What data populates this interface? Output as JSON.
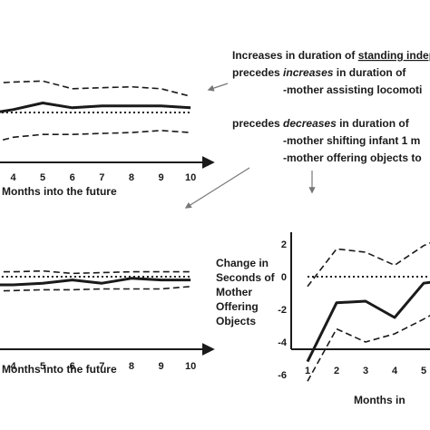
{
  "annotation": {
    "line1_prefix": "Increases in duration of ",
    "line1_underlined": "standing indep",
    "line2_prefix": "precedes ",
    "line2_emph": "increases",
    "line2_suffix": " in duration of",
    "line3": "-mother assisting locomoti",
    "line4_prefix": "precedes ",
    "line4_emph": "decreases",
    "line4_suffix": " in duration of",
    "line5": "-mother shifting infant 1 m",
    "line6": "-mother offering objects to"
  },
  "colors": {
    "line": "#1a1a1a",
    "axis": "#1a1a1a",
    "arrow": "#777777"
  },
  "chart_data": [
    {
      "type": "line",
      "panel": "top-left",
      "title": "",
      "xlabel": "Months into the future",
      "ylabel": "",
      "categories": [
        "4",
        "5",
        "6",
        "7",
        "8",
        "9",
        "10"
      ],
      "x": [
        3,
        4,
        5,
        6,
        7,
        8,
        9,
        10
      ],
      "series": [
        {
          "style": "solid",
          "values": [
            -0.1,
            0.15,
            0.5,
            0.25,
            0.35,
            0.35,
            0.35,
            0.25
          ]
        },
        {
          "style": "dashed",
          "values": [
            1.5,
            1.6,
            1.65,
            1.25,
            1.3,
            1.35,
            1.25,
            0.85
          ]
        },
        {
          "style": "dashed",
          "values": [
            -1.7,
            -1.3,
            -1.15,
            -1.15,
            -1.1,
            -1.05,
            -0.95,
            -1.05
          ]
        },
        {
          "style": "dotted",
          "values": [
            0,
            0,
            0,
            0,
            0,
            0,
            0,
            0
          ]
        }
      ],
      "ylim": [
        -2,
        2
      ],
      "grid": false
    },
    {
      "type": "line",
      "panel": "bottom-left",
      "title": "",
      "xlabel": "Months into the future",
      "ylabel": "",
      "categories": [
        "4",
        "5",
        "6",
        "7",
        "8",
        "9",
        "10"
      ],
      "x": [
        3,
        4,
        5,
        6,
        7,
        8,
        9,
        10
      ],
      "series": [
        {
          "style": "solid",
          "values": [
            -0.5,
            -0.5,
            -0.4,
            -0.2,
            -0.4,
            -0.1,
            -0.2,
            -0.2
          ]
        },
        {
          "style": "dashed",
          "values": [
            0.3,
            0.3,
            0.35,
            0.2,
            0.25,
            0.3,
            0.3,
            0.3
          ]
        },
        {
          "style": "dashed",
          "values": [
            -0.9,
            -0.85,
            -0.8,
            -0.8,
            -0.75,
            -0.75,
            -0.75,
            -0.6
          ]
        },
        {
          "style": "dotted",
          "values": [
            0,
            0,
            0,
            0,
            0,
            0,
            0,
            0
          ]
        }
      ],
      "ylim": [
        -6,
        2
      ],
      "grid": false
    },
    {
      "type": "line",
      "panel": "bottom-right",
      "title": "",
      "xlabel": "Months in",
      "ylabel": "Change in Seconds of Mother Offering Objects",
      "ylabel_lines": [
        "Change in",
        "Seconds of",
        "Mother",
        "Offering",
        "Objects"
      ],
      "categories": [
        "1",
        "2",
        "3",
        "4",
        "5"
      ],
      "yticks": [
        "2",
        "0",
        "-2",
        "-4",
        "-6"
      ],
      "x": [
        1,
        2,
        3,
        4,
        5,
        5.4
      ],
      "series": [
        {
          "style": "solid",
          "values": [
            -5.2,
            -1.6,
            -1.5,
            -2.5,
            -0.4,
            -0.3
          ]
        },
        {
          "style": "dashed",
          "values": [
            -0.6,
            1.7,
            1.5,
            0.7,
            1.9,
            2.2
          ]
        },
        {
          "style": "dashed",
          "values": [
            -6.4,
            -3.2,
            -4.0,
            -3.5,
            -2.6,
            -2.2
          ]
        },
        {
          "style": "dotted",
          "values": [
            0,
            0,
            0,
            0,
            0,
            0
          ]
        }
      ],
      "ylim": [
        -6.5,
        2.6
      ],
      "grid": false
    }
  ]
}
